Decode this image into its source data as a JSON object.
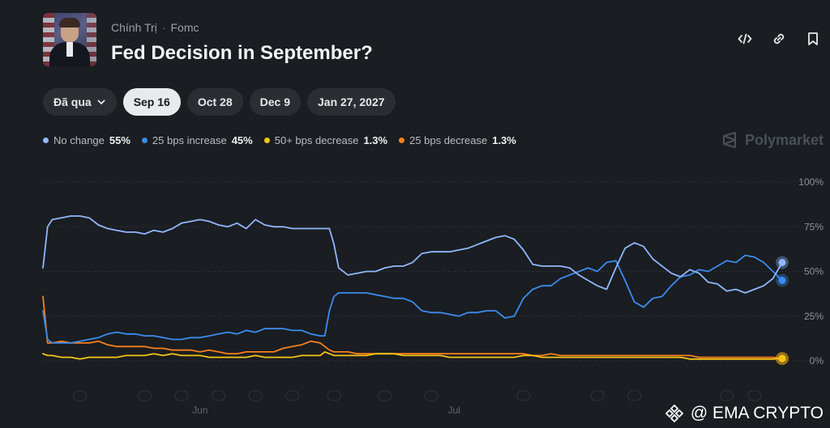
{
  "header": {
    "category": "Chính Trị",
    "subcategory": "Fomc",
    "title": "Fed Decision in September?"
  },
  "tabs": [
    {
      "label": "Đã qua",
      "dropdown": true,
      "active": false
    },
    {
      "label": "Sep 16",
      "active": true
    },
    {
      "label": "Oct 28",
      "active": false
    },
    {
      "label": "Dec 9",
      "active": false
    },
    {
      "label": "Jan 27, 2027",
      "active": false
    }
  ],
  "brand": "Polymarket",
  "watermark": "@ EMA CRYPTO",
  "icons": [
    "embed-icon",
    "link-icon",
    "bookmark-icon",
    "chevron-down-icon",
    "polymarket-logo-icon",
    "binance-logo-icon"
  ],
  "chart_data": {
    "type": "line",
    "ylim": [
      0,
      100
    ],
    "y_ticks": [
      "100%",
      "75%",
      "50%",
      "25%",
      "0%"
    ],
    "x_tick_labels": [
      {
        "label": "Jun",
        "x": 34
      },
      {
        "label": "Jul",
        "x": 89
      }
    ],
    "grid": "horizontal-dotted",
    "series": [
      {
        "name": "No change",
        "value_label": "55%",
        "color": "#8fb8ff",
        "x": [
          0,
          1,
          2,
          4,
          6,
          8,
          10,
          12,
          14,
          16,
          18,
          20,
          22,
          24,
          26,
          28,
          30,
          32,
          34,
          36,
          38,
          40,
          42,
          44,
          46,
          48,
          50,
          52,
          54,
          56,
          58,
          60,
          61,
          62,
          63,
          64,
          66,
          68,
          70,
          72,
          74,
          76,
          78,
          80,
          82,
          84,
          86,
          88,
          90,
          92,
          94,
          96,
          98,
          100,
          102,
          104,
          106,
          108,
          110,
          112,
          114,
          116,
          118,
          120,
          122,
          124,
          126,
          128,
          130,
          132,
          134,
          136,
          138,
          140,
          142,
          144,
          146,
          148,
          150,
          152,
          154,
          156,
          158,
          160
        ],
        "y": [
          52,
          75,
          79,
          80,
          81,
          81,
          80,
          76,
          74,
          73,
          72,
          72,
          71,
          73,
          72,
          74,
          77,
          78,
          79,
          78,
          76,
          75,
          77,
          74,
          79,
          76,
          75,
          75,
          74,
          74,
          74,
          74,
          74,
          74,
          65,
          52,
          48,
          49,
          50,
          50,
          52,
          53,
          53,
          55,
          60,
          61,
          61,
          61,
          62,
          63,
          65,
          67,
          69,
          70,
          68,
          62,
          54,
          53,
          53,
          53,
          52,
          48,
          45,
          42,
          40,
          52,
          63,
          66,
          64,
          57,
          53,
          49,
          47,
          51,
          49,
          44,
          43,
          39,
          40,
          38,
          40,
          42,
          46,
          55
        ]
      },
      {
        "name": "25 bps increase",
        "value_label": "45%",
        "color": "#3b8cf0",
        "x": [
          0,
          1,
          2,
          4,
          6,
          8,
          10,
          12,
          14,
          16,
          18,
          20,
          22,
          24,
          26,
          28,
          30,
          32,
          34,
          36,
          38,
          40,
          42,
          44,
          46,
          48,
          50,
          52,
          54,
          56,
          58,
          60,
          61,
          62,
          63,
          64,
          66,
          68,
          70,
          72,
          74,
          76,
          78,
          80,
          82,
          84,
          86,
          88,
          90,
          92,
          94,
          96,
          98,
          100,
          102,
          104,
          106,
          108,
          110,
          112,
          114,
          116,
          118,
          120,
          122,
          124,
          126,
          128,
          130,
          132,
          134,
          136,
          138,
          140,
          142,
          144,
          146,
          148,
          150,
          152,
          154,
          156,
          158,
          160
        ],
        "y": [
          28,
          12,
          10,
          10,
          10,
          11,
          12,
          13,
          15,
          16,
          15,
          15,
          14,
          14,
          13,
          12,
          12,
          13,
          13,
          14,
          15,
          16,
          15,
          17,
          16,
          18,
          18,
          18,
          17,
          17,
          15,
          14,
          14,
          28,
          36,
          38,
          38,
          38,
          38,
          37,
          36,
          35,
          35,
          33,
          28,
          27,
          27,
          26,
          25,
          27,
          27,
          28,
          28,
          24,
          25,
          35,
          40,
          42,
          42,
          46,
          48,
          50,
          52,
          50,
          55,
          56,
          45,
          33,
          30,
          35,
          36,
          42,
          47,
          48,
          51,
          50,
          53,
          56,
          55,
          59,
          58,
          55,
          50,
          45
        ]
      },
      {
        "name": "50+ bps decrease",
        "value_label": "1.3%",
        "color": "#f5c518",
        "x": [
          0,
          1,
          2,
          4,
          6,
          8,
          10,
          12,
          14,
          16,
          18,
          20,
          22,
          24,
          26,
          28,
          30,
          32,
          34,
          36,
          38,
          40,
          42,
          44,
          46,
          48,
          50,
          52,
          54,
          56,
          58,
          60,
          61,
          62,
          63,
          64,
          66,
          68,
          70,
          72,
          74,
          76,
          78,
          80,
          82,
          84,
          86,
          88,
          90,
          92,
          94,
          96,
          98,
          100,
          102,
          104,
          106,
          108,
          110,
          112,
          114,
          116,
          118,
          120,
          122,
          124,
          126,
          128,
          130,
          132,
          134,
          136,
          138,
          140,
          142,
          144,
          146,
          148,
          150,
          152,
          154,
          156,
          158,
          160
        ],
        "y": [
          4,
          3,
          3,
          2,
          2,
          1,
          2,
          2,
          2,
          2,
          3,
          3,
          3,
          4,
          3,
          4,
          3,
          3,
          3,
          2,
          2,
          2,
          2,
          2,
          3,
          2,
          2,
          2,
          2,
          3,
          3,
          3,
          5,
          4,
          3,
          3,
          3,
          3,
          3,
          4,
          4,
          4,
          3,
          3,
          3,
          3,
          3,
          2,
          2,
          2,
          2,
          2,
          2,
          2,
          2,
          3,
          3,
          2,
          2,
          2,
          2,
          2,
          2,
          2,
          2,
          2,
          2,
          2,
          2,
          2,
          2,
          2,
          2,
          1,
          1,
          1,
          1,
          1,
          1,
          1,
          1,
          1,
          1,
          1.3
        ]
      },
      {
        "name": "25 bps decrease",
        "value_label": "1.3%",
        "color": "#f7801e",
        "x": [
          0,
          1,
          2,
          4,
          6,
          8,
          10,
          12,
          14,
          16,
          18,
          20,
          22,
          24,
          26,
          28,
          30,
          32,
          34,
          36,
          38,
          40,
          42,
          44,
          46,
          48,
          50,
          52,
          54,
          56,
          58,
          60,
          61,
          62,
          63,
          64,
          66,
          68,
          70,
          72,
          74,
          76,
          78,
          80,
          82,
          84,
          86,
          88,
          90,
          92,
          94,
          96,
          98,
          100,
          102,
          104,
          106,
          108,
          110,
          112,
          114,
          116,
          118,
          120,
          122,
          124,
          126,
          128,
          130,
          132,
          134,
          136,
          138,
          140,
          142,
          144,
          146,
          148,
          150,
          152,
          154,
          156,
          158,
          160
        ],
        "y": [
          36,
          10,
          10,
          11,
          10,
          10,
          10,
          11,
          9,
          8,
          8,
          8,
          8,
          7,
          7,
          6,
          6,
          6,
          5,
          6,
          5,
          4,
          4,
          5,
          5,
          5,
          5,
          7,
          8,
          9,
          11,
          10,
          8,
          6,
          5,
          5,
          5,
          4,
          4,
          4,
          4,
          4,
          4,
          4,
          4,
          4,
          4,
          4,
          4,
          4,
          4,
          4,
          4,
          4,
          4,
          4,
          3,
          3,
          4,
          3,
          3,
          3,
          3,
          3,
          3,
          3,
          3,
          3,
          3,
          3,
          3,
          3,
          3,
          3,
          2,
          2,
          2,
          2,
          2,
          2,
          2,
          2,
          2,
          1.3
        ]
      }
    ]
  }
}
